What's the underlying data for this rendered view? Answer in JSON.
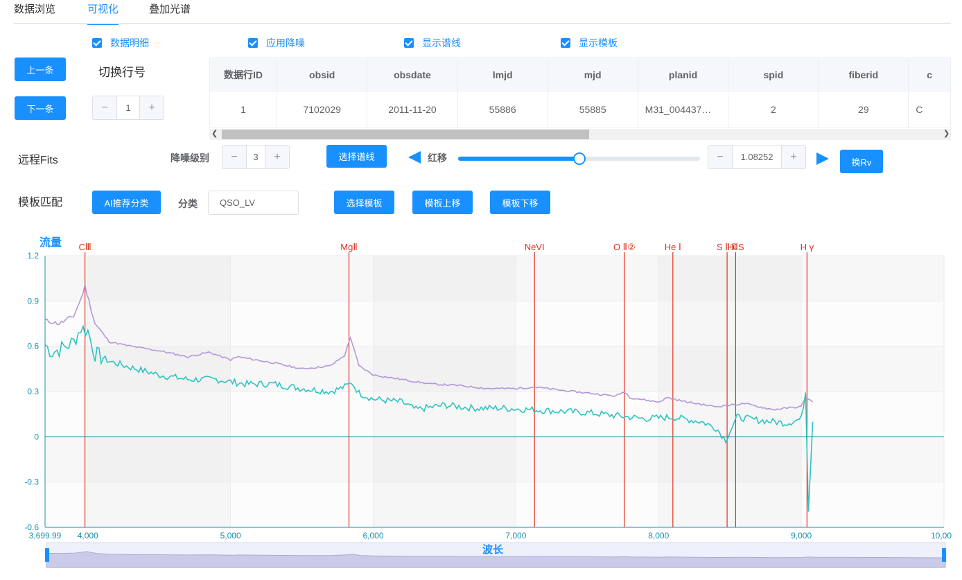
{
  "tabs": [
    {
      "label": "数据浏览"
    },
    {
      "label": "可视化",
      "active": true
    },
    {
      "label": "叠加光谱"
    }
  ],
  "checkboxes": [
    {
      "label": "数据明细",
      "checked": true
    },
    {
      "label": "应用降噪",
      "checked": true
    },
    {
      "label": "显示谱线",
      "checked": true
    },
    {
      "label": "显示模板",
      "checked": true
    }
  ],
  "nav": {
    "prev_label": "上一条",
    "next_label": "下一条",
    "switch_row_label": "切换行号",
    "row_value": "1"
  },
  "table": {
    "columns": [
      "数据行ID",
      "obsid",
      "obsdate",
      "lmjd",
      "mjd",
      "planid",
      "spid",
      "fiberid",
      "c"
    ],
    "rows": [
      [
        "1",
        "7102029",
        "2011-11-20",
        "55886",
        "55885",
        "M31_004437…",
        "2",
        "29",
        "C"
      ]
    ]
  },
  "controls": {
    "remote_fits_label": "远程Fits",
    "denoise_level_label": "降噪级别",
    "denoise_level_value": "3",
    "select_lines_label": "选择谱线",
    "redshift_label": "红移",
    "redshift_value": "1.08252",
    "redshift_slider_fraction": 0.5,
    "change_rv_label": "换Rv",
    "template_match_label": "模板匹配",
    "ai_classify_label": "AI推荐分类",
    "class_label": "分类",
    "class_value": "QSO_LV",
    "select_template_label": "选择模板",
    "template_up_label": "模板上移",
    "template_down_label": "模板下移"
  },
  "colors": {
    "accent": "#1890ff",
    "line_marker": "#e0301e",
    "series_flux": "#2ec4c0",
    "series_template": "#b497db"
  },
  "chart_data": {
    "type": "line",
    "ylabel": "流量",
    "xlabel": "波长",
    "xlim": [
      3699.99,
      10000
    ],
    "ylim": [
      -0.6,
      1.2
    ],
    "y_ticks": [
      "1.2",
      "0.9",
      "0.6",
      "0.3",
      "0",
      "-0.3",
      "-0.6"
    ],
    "x_ticks": [
      "3,699.99",
      "4,000",
      "5,000",
      "6,000",
      "7,000",
      "8,000",
      "9,000",
      "10,00"
    ],
    "lines": [
      {
        "label": "CⅢ",
        "x": 3980
      },
      {
        "label": "MgⅡ",
        "x": 5830
      },
      {
        "label": "NeVI",
        "x": 7130
      },
      {
        "label": "O Ⅱ②",
        "x": 7760
      },
      {
        "label": "He Ⅰ",
        "x": 8100
      },
      {
        "label": "S Ⅱ①",
        "x": 8480
      },
      {
        "label": "HⅡS",
        "x": 8540
      },
      {
        "label": "H γ",
        "x": 9040
      }
    ],
    "series": [
      {
        "values": [
          [
            3700,
            0.61
          ],
          [
            3750,
            0.56
          ],
          [
            3800,
            0.58
          ],
          [
            3850,
            0.6
          ],
          [
            3900,
            0.63
          ],
          [
            3950,
            0.72
          ],
          [
            4000,
            0.7
          ],
          [
            4050,
            0.55
          ],
          [
            4150,
            0.5
          ],
          [
            4300,
            0.46
          ],
          [
            4500,
            0.41
          ],
          [
            4700,
            0.38
          ],
          [
            4900,
            0.38
          ],
          [
            5100,
            0.35
          ],
          [
            5300,
            0.35
          ],
          [
            5500,
            0.32
          ],
          [
            5700,
            0.3
          ],
          [
            5800,
            0.33
          ],
          [
            5850,
            0.36
          ],
          [
            5900,
            0.29
          ],
          [
            6000,
            0.25
          ],
          [
            6200,
            0.23
          ],
          [
            6300,
            0.18
          ],
          [
            6500,
            0.21
          ],
          [
            6700,
            0.19
          ],
          [
            6900,
            0.19
          ],
          [
            7100,
            0.18
          ],
          [
            7300,
            0.17
          ],
          [
            7500,
            0.16
          ],
          [
            7700,
            0.14
          ],
          [
            7900,
            0.12
          ],
          [
            8100,
            0.13
          ],
          [
            8300,
            0.1
          ],
          [
            8400,
            0.06
          ],
          [
            8470,
            -0.02
          ],
          [
            8550,
            0.13
          ],
          [
            8700,
            0.11
          ],
          [
            8900,
            0.09
          ],
          [
            9000,
            0.12
          ],
          [
            9030,
            0.3
          ],
          [
            9050,
            -0.48
          ],
          [
            9080,
            0.1
          ]
        ]
      },
      {
        "values": [
          [
            3700,
            0.77
          ],
          [
            3800,
            0.75
          ],
          [
            3900,
            0.8
          ],
          [
            3950,
            0.91
          ],
          [
            3980,
            1.0
          ],
          [
            4050,
            0.75
          ],
          [
            4150,
            0.63
          ],
          [
            4300,
            0.6
          ],
          [
            4500,
            0.57
          ],
          [
            4700,
            0.53
          ],
          [
            4850,
            0.56
          ],
          [
            5000,
            0.51
          ],
          [
            5050,
            0.53
          ],
          [
            5300,
            0.49
          ],
          [
            5500,
            0.45
          ],
          [
            5700,
            0.47
          ],
          [
            5800,
            0.54
          ],
          [
            5840,
            0.66
          ],
          [
            5900,
            0.47
          ],
          [
            6000,
            0.41
          ],
          [
            6200,
            0.38
          ],
          [
            6400,
            0.35
          ],
          [
            6600,
            0.34
          ],
          [
            6800,
            0.32
          ],
          [
            7000,
            0.32
          ],
          [
            7130,
            0.33
          ],
          [
            7300,
            0.31
          ],
          [
            7500,
            0.29
          ],
          [
            7700,
            0.27
          ],
          [
            7760,
            0.3
          ],
          [
            7800,
            0.26
          ],
          [
            8000,
            0.23
          ],
          [
            8060,
            0.26
          ],
          [
            8200,
            0.23
          ],
          [
            8400,
            0.2
          ],
          [
            8600,
            0.22
          ],
          [
            8800,
            0.18
          ],
          [
            9000,
            0.2
          ],
          [
            9030,
            0.26
          ],
          [
            9080,
            0.23
          ]
        ]
      }
    ]
  },
  "zoom": {
    "start_fraction": 0,
    "end_fraction": 1
  }
}
